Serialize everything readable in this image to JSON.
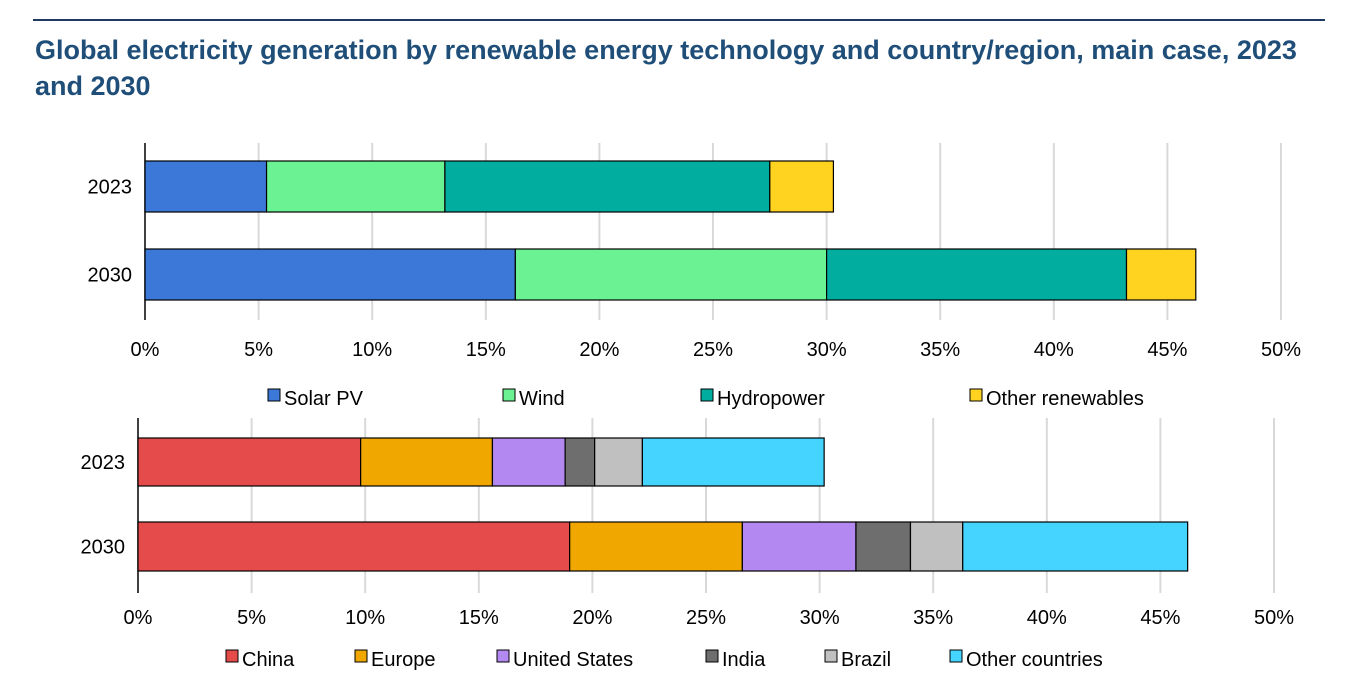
{
  "title": "Global electricity generation by renewable energy technology and country/region, main case, 2023 and 2030",
  "chart_data": [
    {
      "type": "bar",
      "orientation": "horizontal",
      "stacked": true,
      "categories": [
        "2023",
        "2030"
      ],
      "x_ticks": [
        "0%",
        "5%",
        "10%",
        "15%",
        "20%",
        "25%",
        "30%",
        "35%",
        "40%",
        "45%",
        "50%"
      ],
      "xlim": [
        0,
        50
      ],
      "grid": true,
      "legend_position": "bottom",
      "series": [
        {
          "name": "Solar PV",
          "color": "#3c78d8",
          "values": [
            5.35,
            16.3
          ]
        },
        {
          "name": "Wind",
          "color": "#6bf393",
          "values": [
            7.85,
            13.7
          ]
        },
        {
          "name": "Hydropower",
          "color": "#00ad9f",
          "values": [
            14.3,
            13.2
          ]
        },
        {
          "name": "Other renewables",
          "color": "#ffd320",
          "values": [
            2.8,
            3.05
          ]
        }
      ]
    },
    {
      "type": "bar",
      "orientation": "horizontal",
      "stacked": true,
      "categories": [
        "2023",
        "2030"
      ],
      "x_ticks": [
        "0%",
        "5%",
        "10%",
        "15%",
        "20%",
        "25%",
        "30%",
        "35%",
        "40%",
        "45%",
        "50%"
      ],
      "xlim": [
        0,
        50
      ],
      "grid": true,
      "legend_position": "bottom",
      "series": [
        {
          "name": "China",
          "color": "#e54b4b",
          "values": [
            9.8,
            19.0
          ]
        },
        {
          "name": "Europe",
          "color": "#f0a800",
          "values": [
            5.8,
            7.6
          ]
        },
        {
          "name": "United States",
          "color": "#b388f0",
          "values": [
            3.2,
            5.0
          ]
        },
        {
          "name": "India",
          "color": "#6e6e6e",
          "values": [
            1.3,
            2.4
          ]
        },
        {
          "name": "Brazil",
          "color": "#c0c0c0",
          "values": [
            2.1,
            2.3
          ]
        },
        {
          "name": "Other countries",
          "color": "#45d4ff",
          "values": [
            8.0,
            9.9
          ]
        }
      ]
    }
  ]
}
